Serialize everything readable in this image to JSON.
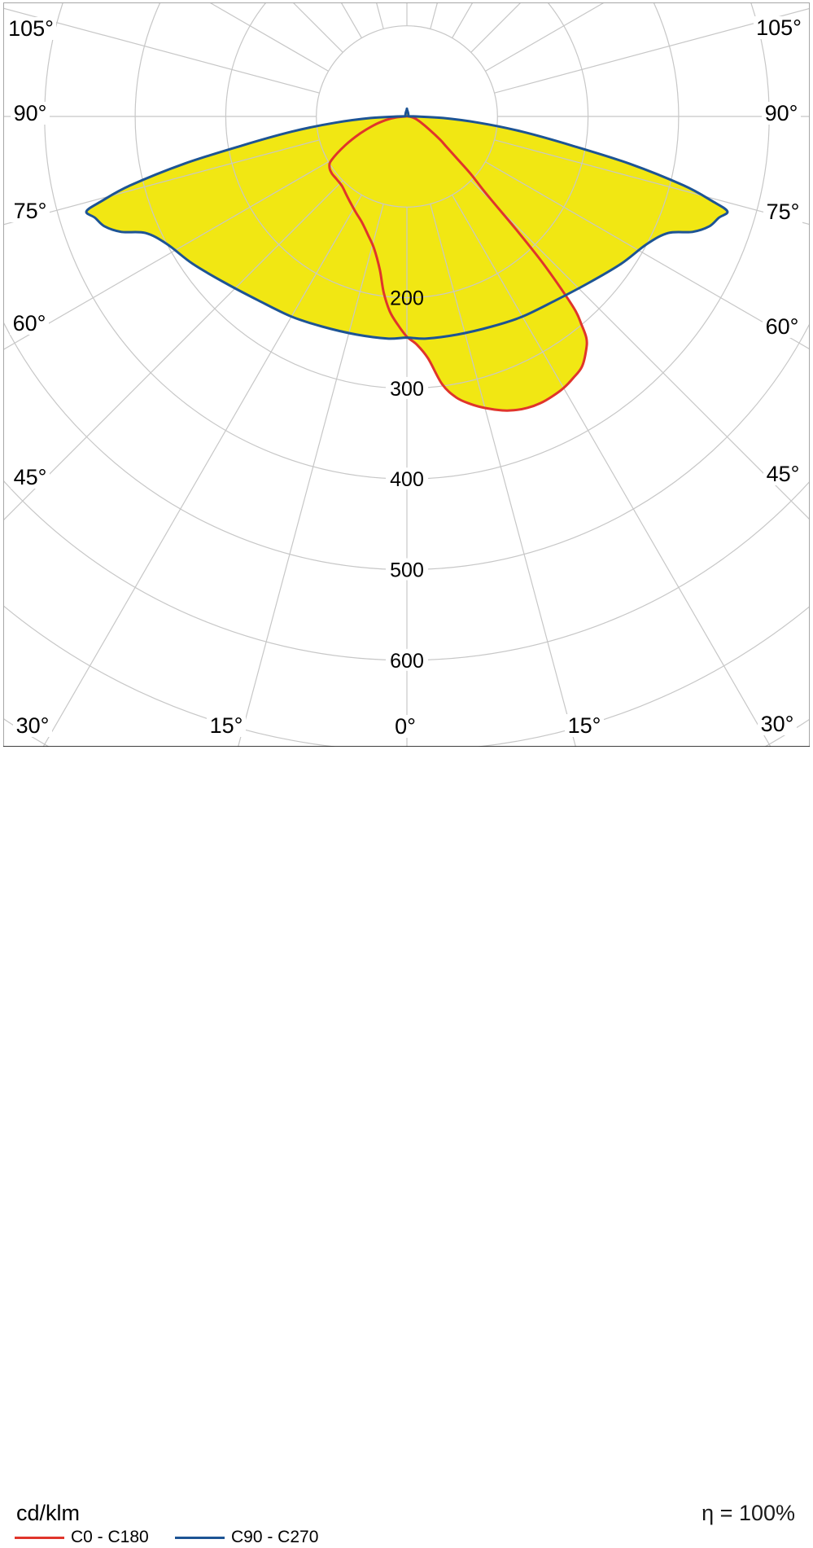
{
  "footer": {
    "units_label": "cd/klm",
    "eta_label": "η = 100%"
  },
  "legend": {
    "items": [
      {
        "label": "C0 - C180",
        "color": "#e0352b"
      },
      {
        "label": "C90 - C270",
        "color": "#1d5494"
      }
    ]
  },
  "chart_data": {
    "type": "polar_photometric",
    "units": "cd/klm",
    "efficiency": "100%",
    "angle_labels_deg": [
      0,
      15,
      30,
      45,
      60,
      75,
      90,
      105
    ],
    "angle_grid_step_deg": 15,
    "radial_tick_values": [
      200,
      300,
      400,
      500,
      600
    ],
    "radial_grid_step": 100,
    "radial_grid_max": 800,
    "colors": {
      "fill": "#f1e713",
      "c0_c180": "#e0352b",
      "c90_c270": "#1d5494",
      "grid": "#c7c7c7",
      "frame": "#a6a6a6",
      "bottom_rule": "#000000"
    },
    "legend_position": "bottom",
    "series": [
      {
        "name": "C0 - C180",
        "color": "#e0352b",
        "points": [
          [
            -90,
            2
          ],
          [
            -85,
            12
          ],
          [
            -80,
            24
          ],
          [
            -75,
            38
          ],
          [
            -70,
            55
          ],
          [
            -65,
            75
          ],
          [
            -60,
            96
          ],
          [
            -57,
            102
          ],
          [
            -53,
            104
          ],
          [
            -48,
            104
          ],
          [
            -43,
            105
          ],
          [
            -38,
            109
          ],
          [
            -33,
            114
          ],
          [
            -28,
            120
          ],
          [
            -23,
            127
          ],
          [
            -18,
            138
          ],
          [
            -14,
            150
          ],
          [
            -10,
            172
          ],
          [
            -7.5,
            196
          ],
          [
            -5,
            216
          ],
          [
            -2.5,
            230
          ],
          [
            0,
            243
          ],
          [
            2.5,
            252
          ],
          [
            5,
            268
          ],
          [
            7.5,
            298
          ],
          [
            10,
            315
          ],
          [
            12.5,
            325
          ],
          [
            15,
            333
          ],
          [
            18,
            341
          ],
          [
            20,
            345
          ],
          [
            22.5,
            348
          ],
          [
            25,
            349
          ],
          [
            27.5,
            348
          ],
          [
            30,
            346
          ],
          [
            32.5,
            342
          ],
          [
            35,
            337
          ],
          [
            37.5,
            325
          ],
          [
            39,
            315
          ],
          [
            40,
            300
          ],
          [
            41,
            283
          ],
          [
            42,
            250
          ],
          [
            43,
            215
          ],
          [
            44,
            175
          ],
          [
            45,
            140
          ],
          [
            46,
            118
          ],
          [
            48,
            95
          ],
          [
            50,
            72
          ],
          [
            52.5,
            55
          ],
          [
            55,
            45
          ],
          [
            60,
            28
          ],
          [
            67.5,
            16
          ],
          [
            75,
            10
          ],
          [
            82.5,
            5
          ],
          [
            90,
            2
          ]
        ]
      },
      {
        "name": "C90 - C270",
        "color": "#1d5494",
        "points": [
          [
            -180,
            8
          ],
          [
            -160,
            4
          ],
          [
            -120,
            2
          ],
          [
            -95,
            2
          ],
          [
            -90,
            10
          ],
          [
            -87.5,
            40
          ],
          [
            -85,
            80
          ],
          [
            -82.5,
            128
          ],
          [
            -80,
            185
          ],
          [
            -78,
            252
          ],
          [
            -76,
            315
          ],
          [
            -74.5,
            350
          ],
          [
            -73.5,
            369
          ],
          [
            -72,
            362
          ],
          [
            -70,
            355
          ],
          [
            -68,
            340
          ],
          [
            -66,
            316
          ],
          [
            -62,
            300
          ],
          [
            -55.5,
            287
          ],
          [
            -47.5,
            272
          ],
          [
            -39,
            261
          ],
          [
            -30,
            255
          ],
          [
            -22,
            250
          ],
          [
            -13,
            247
          ],
          [
            -5,
            246
          ],
          [
            0,
            244
          ],
          [
            5,
            246
          ],
          [
            13,
            247
          ],
          [
            22,
            250
          ],
          [
            30,
            255
          ],
          [
            39,
            261
          ],
          [
            47.5,
            272
          ],
          [
            55.5,
            287
          ],
          [
            62,
            300
          ],
          [
            66,
            316
          ],
          [
            68,
            340
          ],
          [
            70,
            355
          ],
          [
            72,
            362
          ],
          [
            73.5,
            369
          ],
          [
            74.5,
            350
          ],
          [
            76,
            315
          ],
          [
            78,
            252
          ],
          [
            80,
            185
          ],
          [
            82.5,
            128
          ],
          [
            85,
            80
          ],
          [
            87.5,
            40
          ],
          [
            90,
            10
          ],
          [
            95,
            2
          ],
          [
            120,
            2
          ],
          [
            160,
            4
          ],
          [
            180,
            8
          ]
        ]
      }
    ]
  }
}
